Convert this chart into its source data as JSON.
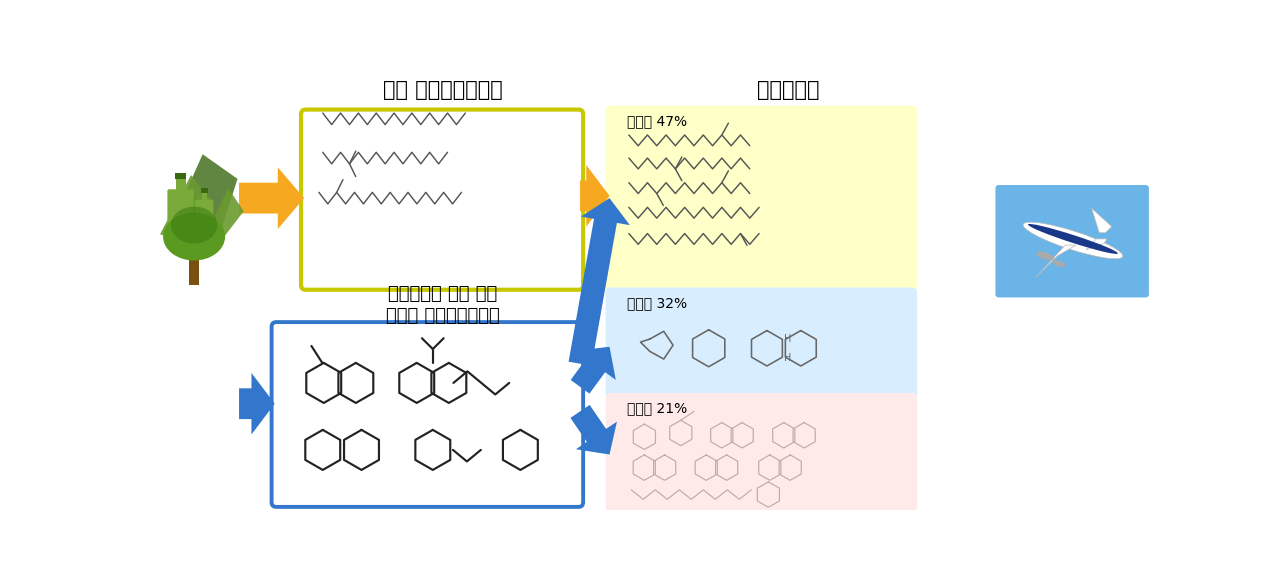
{
  "bg_color": "#ffffff",
  "top_label_existing": "기존 지속가능항공유",
  "top_label_petroleum": "석유항공유",
  "bottom_label1": "석유항공유 완전 대체",
  "bottom_label2": "차세대 지속가능항공유",
  "paraffin_label": "파라핀 47%",
  "naphthene_label": "나프텐 32%",
  "aromatic_label": "방향족 21%",
  "existing_box_color": "#c8c800",
  "next_gen_box_color": "#3377cc",
  "paraffin_box_color": "#ffffc8",
  "naphthene_box_color": "#d8eeff",
  "aromatic_box_color": "#ffeaea",
  "orange_arrow_color": "#f5a820",
  "blue_arrow_color": "#3377cc",
  "chain_color": "#555555",
  "struct_color": "#222222",
  "arom_color": "#c4a8a8"
}
